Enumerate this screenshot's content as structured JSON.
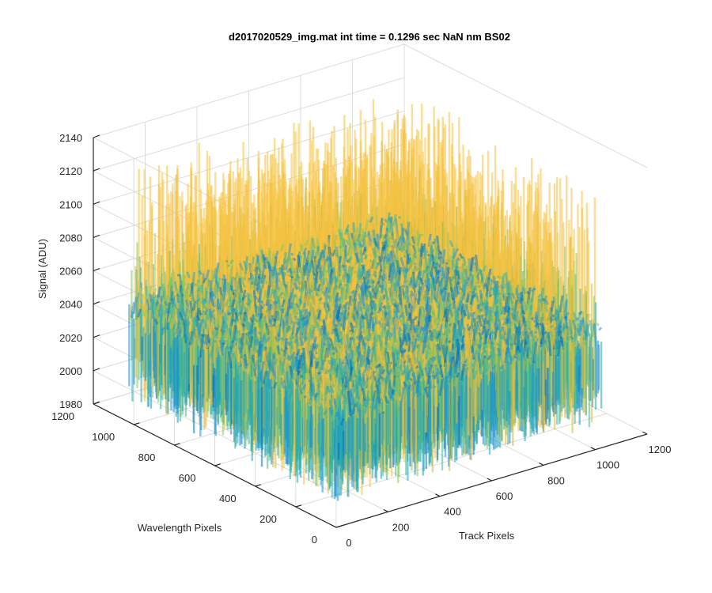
{
  "chart_data": {
    "type": "surface",
    "title": "d2017020529_img.mat int time = 0.1296 sec  NaN nm BS02",
    "xlabel": "Track Pixels",
    "ylabel": "Wavelength Pixels",
    "zlabel": "Signal (ADU)",
    "xlim": [
      0,
      1200
    ],
    "ylim": [
      0,
      1200
    ],
    "zlim": [
      1980,
      2140
    ],
    "xticks": [
      "0",
      "200",
      "400",
      "600",
      "800",
      "1000",
      "1200"
    ],
    "yticks": [
      "0",
      "200",
      "400",
      "600",
      "800",
      "1000",
      "1200"
    ],
    "zticks": [
      "1980",
      "2000",
      "2020",
      "2040",
      "2060",
      "2080",
      "2100",
      "2120",
      "2140"
    ],
    "data_extent": {
      "x": [
        1,
        1024
      ],
      "y": [
        1,
        1024
      ]
    },
    "signal_mean": 2048,
    "signal_range": [
      1990,
      2135
    ],
    "colormap": [
      "#0072BD",
      "#1E90D6",
      "#21A8B4",
      "#3DB89A",
      "#8CC45A",
      "#D9B83C",
      "#F5C242"
    ],
    "grid": true
  }
}
